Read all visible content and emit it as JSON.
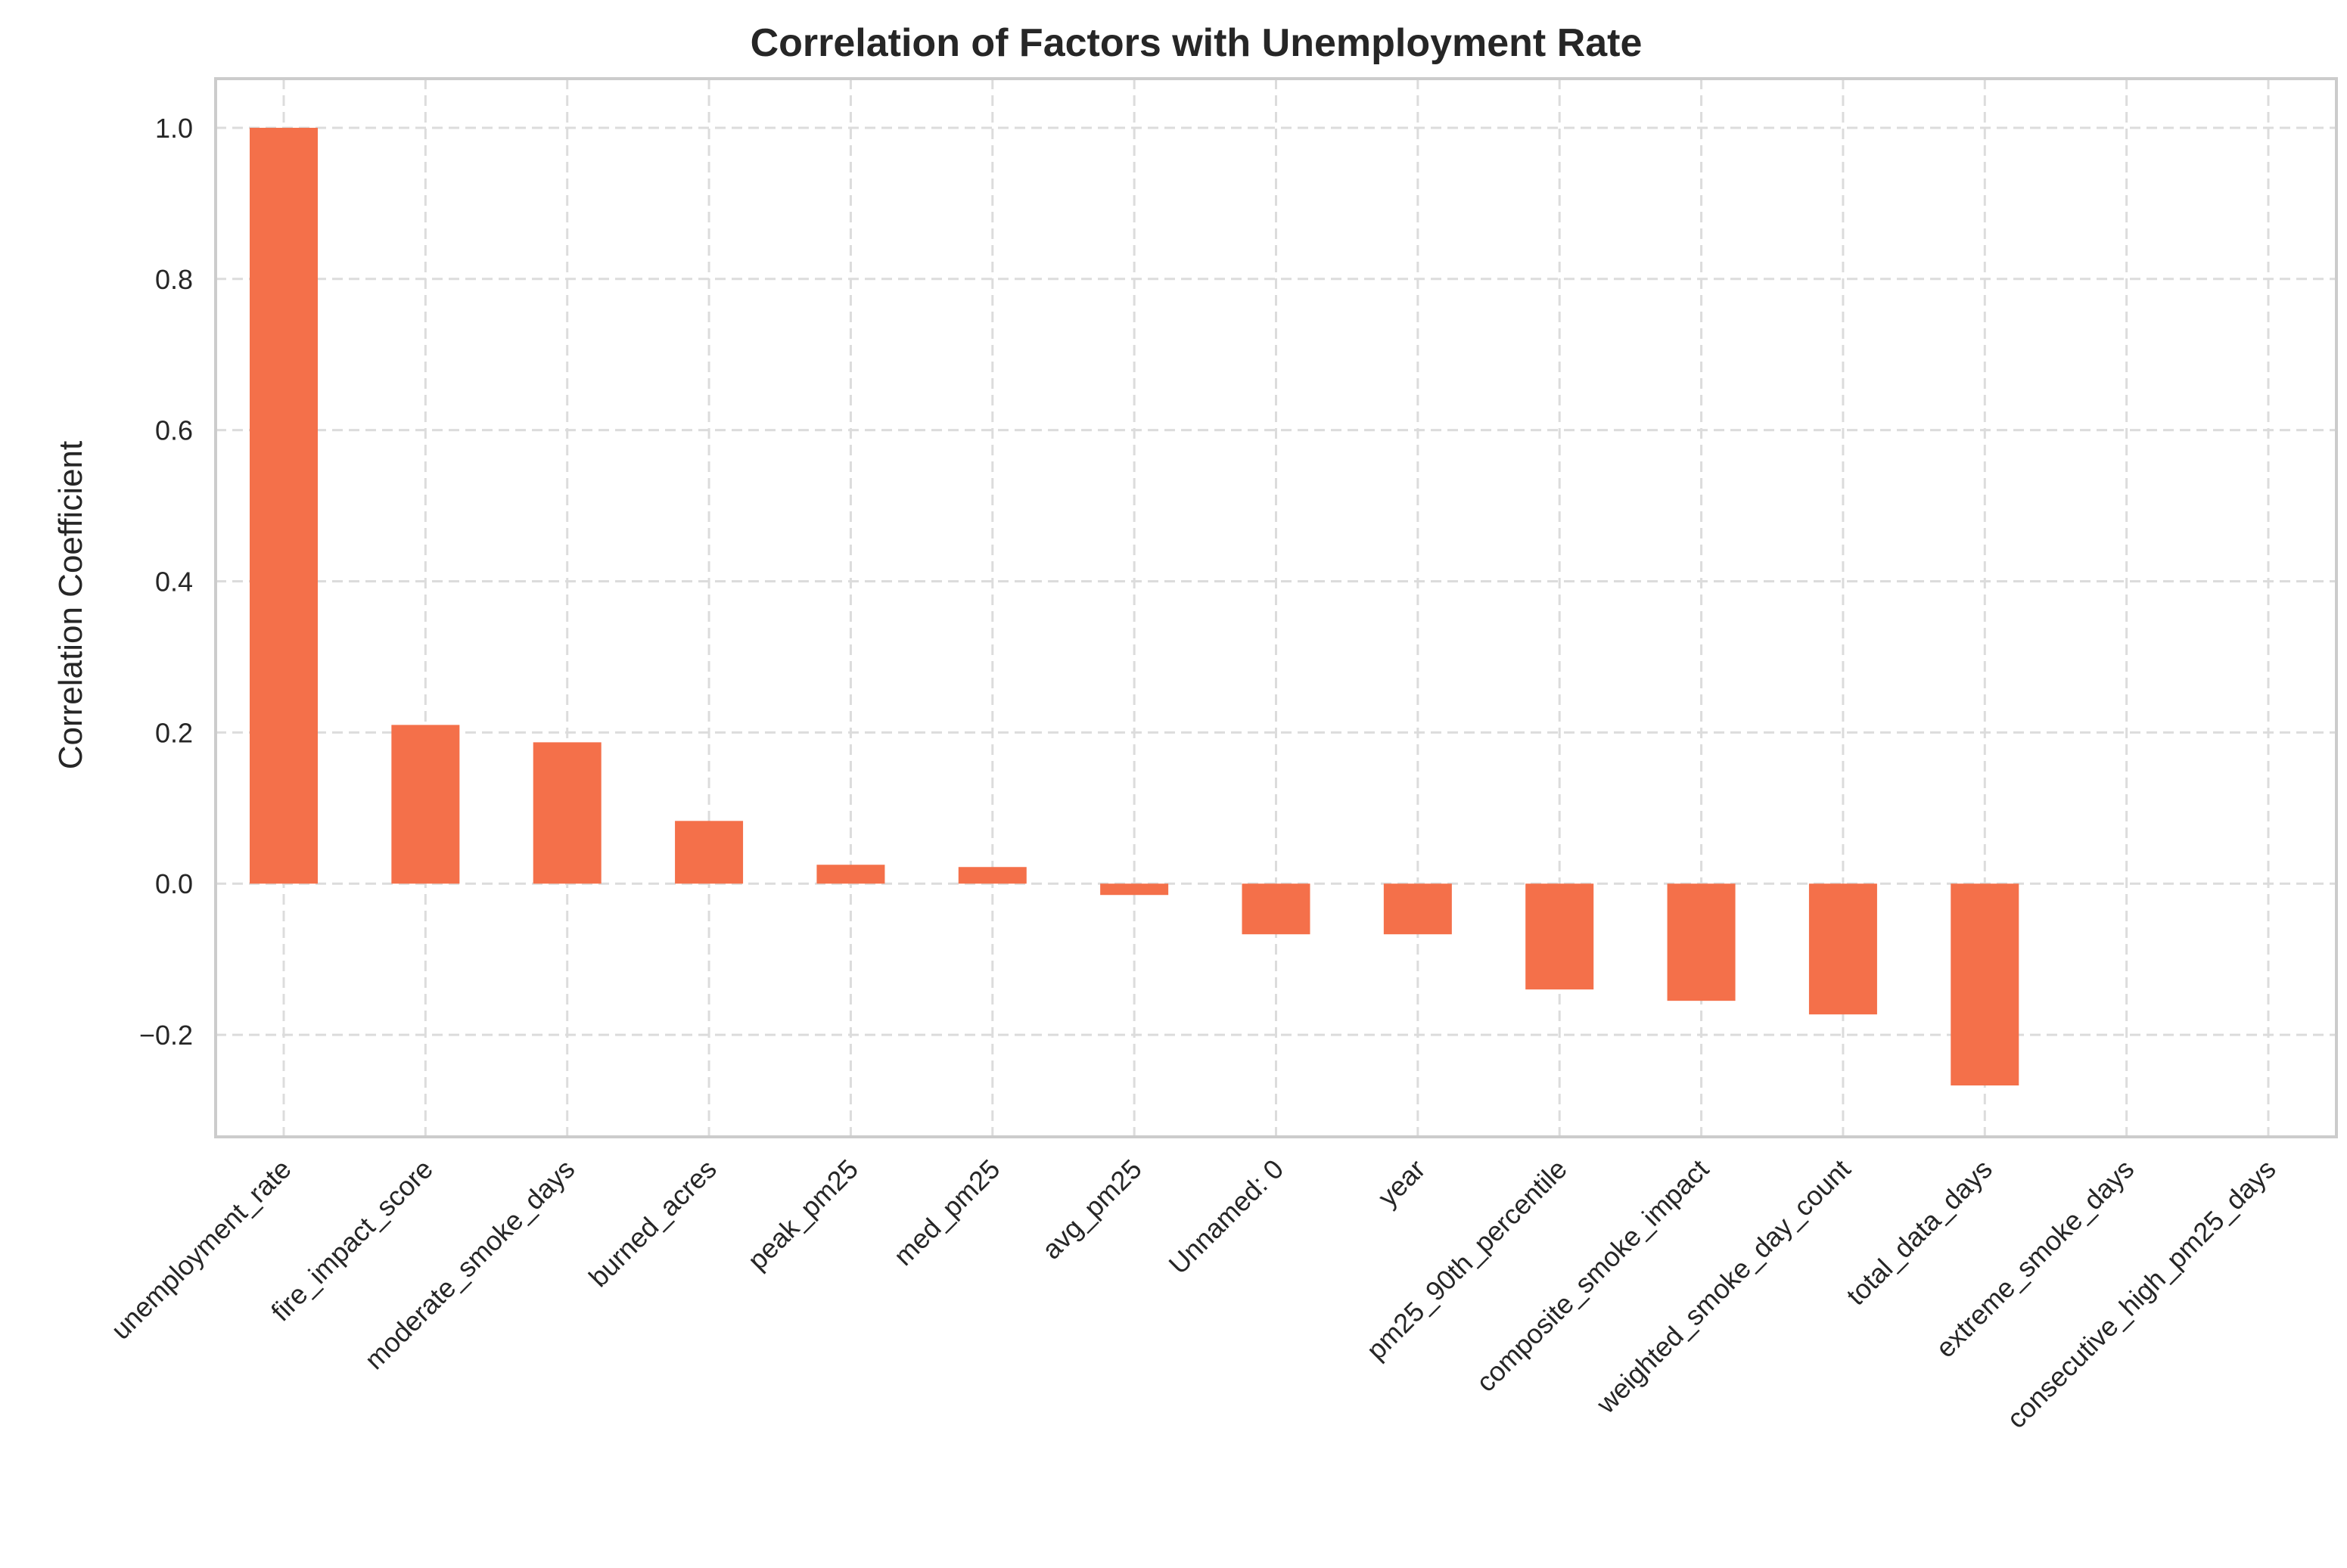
{
  "chart_data": {
    "type": "bar",
    "title": "Correlation of Factors with Unemployment Rate",
    "xlabel": "",
    "ylabel": "Correlation Coefficient",
    "ylim": [
      -0.335,
      1.065
    ],
    "yticks": [
      -0.2,
      0.0,
      0.2,
      0.4,
      0.6,
      0.8,
      1.0
    ],
    "ytick_labels": [
      "−0.2",
      "0.0",
      "0.2",
      "0.4",
      "0.6",
      "0.8",
      "1.0"
    ],
    "grid": true,
    "bar_color": "#F4704A",
    "categories": [
      "unemployment_rate",
      "fire_impact_score",
      "moderate_smoke_days",
      "burned_acres",
      "peak_pm25",
      "med_pm25",
      "avg_pm25",
      "Unnamed: 0",
      "year",
      "pm25_90th_percentile",
      "composite_smoke_impact",
      "weighted_smoke_day_count",
      "total_data_days",
      "extreme_smoke_days",
      "consecutive_high_pm25_days"
    ],
    "values": [
      1.0,
      0.21,
      0.187,
      0.083,
      0.025,
      0.022,
      -0.015,
      -0.067,
      -0.067,
      -0.14,
      -0.155,
      -0.173,
      -0.267,
      null,
      null
    ]
  }
}
